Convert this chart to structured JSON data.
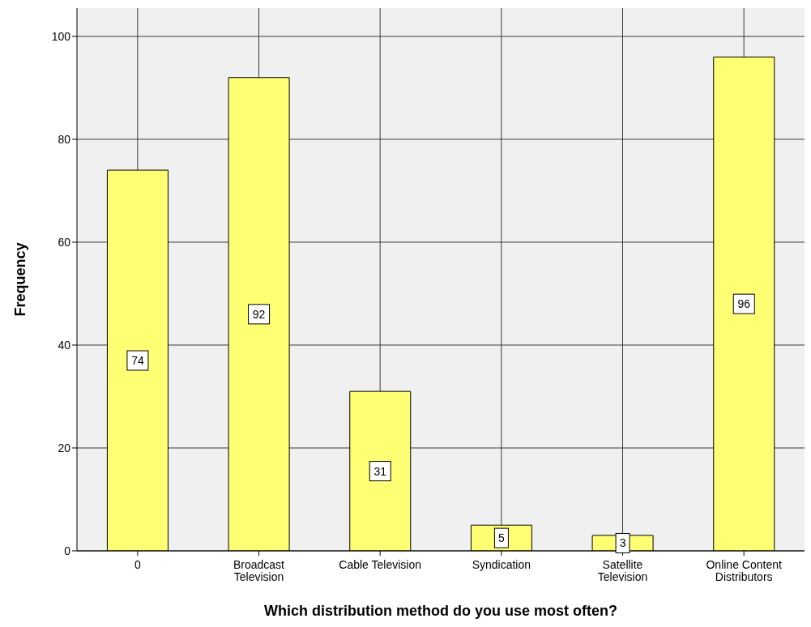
{
  "chart_data": {
    "type": "bar",
    "xlabel": "Which distribution method do you use most often?",
    "ylabel": "Frequency",
    "categories": [
      "0",
      "Broadcast\nTelevision",
      "Cable Television",
      "Syndication",
      "Satellite\nTelevision",
      "Online Content\nDistributors"
    ],
    "values": [
      74,
      92,
      31,
      5,
      3,
      96
    ],
    "color": "#ffff73",
    "ylim": [
      0,
      105.5
    ],
    "yticks": [
      0,
      20,
      40,
      60,
      80,
      100
    ],
    "grid": true,
    "data_labels": true,
    "legend": false
  }
}
